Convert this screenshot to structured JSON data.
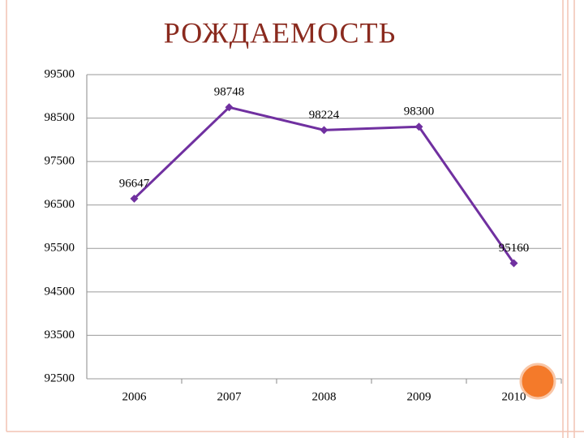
{
  "chart_data": {
    "type": "line",
    "title": "РОЖДАЕМОСТЬ",
    "categories": [
      "2006",
      "2007",
      "2008",
      "2009",
      "2010"
    ],
    "values": [
      96647,
      98748,
      98224,
      98300,
      95160
    ],
    "color": "#7030a0",
    "ylim": [
      92500,
      99500
    ],
    "yticks": [
      92500,
      93500,
      94500,
      95500,
      96500,
      97500,
      98500,
      99500
    ],
    "grid": true
  }
}
